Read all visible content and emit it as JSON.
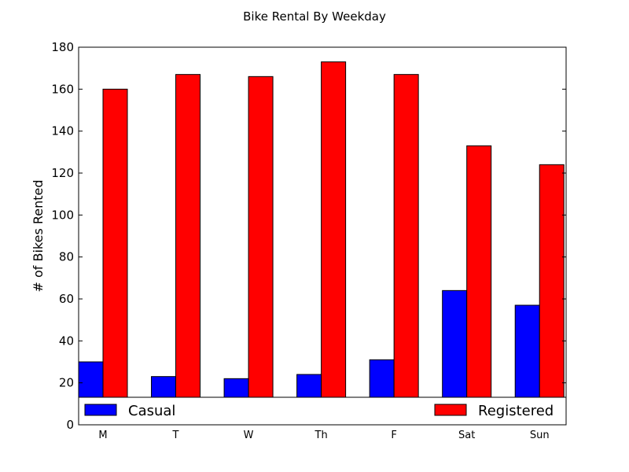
{
  "chart_data": {
    "type": "bar",
    "title": "Bike Rental By Weekday",
    "xlabel": "",
    "ylabel": "# of Bikes Rented",
    "categories": [
      "M",
      "T",
      "W",
      "Th",
      "F",
      "Sat",
      "Sun"
    ],
    "series": [
      {
        "name": "Casual",
        "color": "#0000ff",
        "values": [
          30,
          23,
          22,
          24,
          31,
          64,
          57
        ]
      },
      {
        "name": "Registered",
        "color": "#ff0000",
        "values": [
          160,
          167,
          166,
          173,
          167,
          133,
          124
        ]
      }
    ],
    "ylim": [
      0,
      180
    ],
    "yticks": [
      0,
      20,
      40,
      60,
      80,
      100,
      120,
      140,
      160,
      180
    ],
    "grid": false,
    "legend": "bottom (Casual left, Registered right)"
  }
}
